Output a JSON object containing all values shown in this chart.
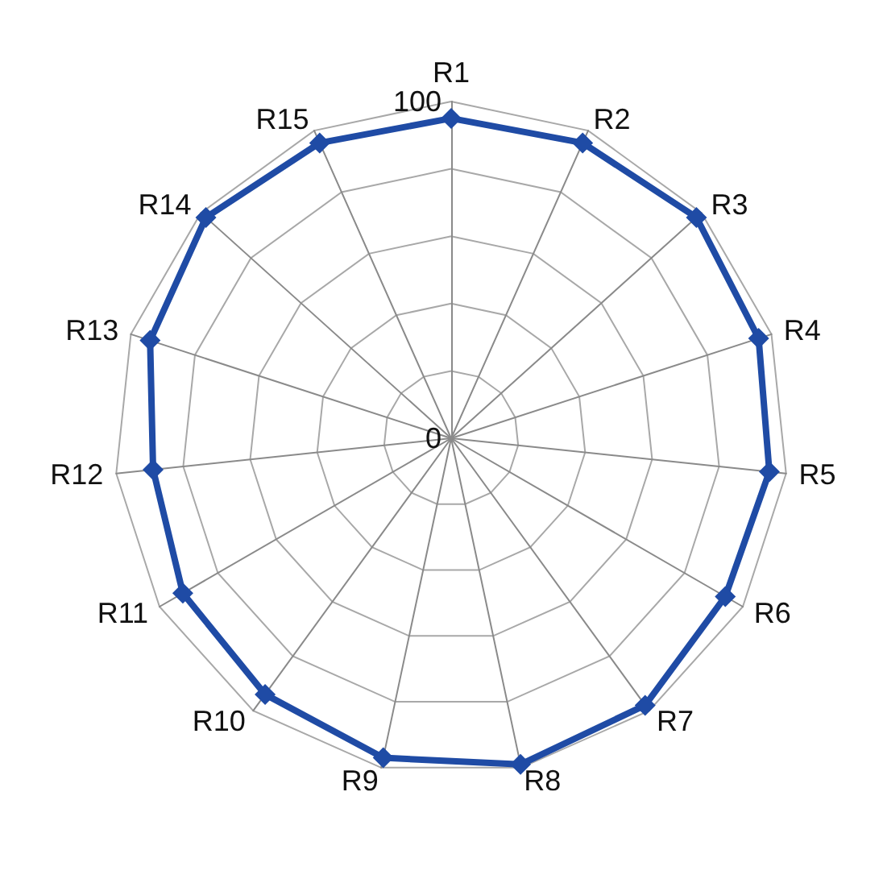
{
  "chart_data": {
    "type": "radar",
    "categories": [
      "R1",
      "R2",
      "R3",
      "R4",
      "R5",
      "R6",
      "R7",
      "R8",
      "R9",
      "R10",
      "R11",
      "R12",
      "R13",
      "R14",
      "R15"
    ],
    "series": [
      {
        "color": "#1f4ba5",
        "values": [
          95,
          96,
          98,
          96,
          95,
          94,
          98,
          99,
          97,
          94,
          92,
          89,
          94,
          98,
          96
        ]
      }
    ],
    "ylim": [
      0,
      100
    ],
    "yticks": [
      0,
      100
    ],
    "grid": true,
    "marker": "diamond",
    "line_style": "solid"
  }
}
